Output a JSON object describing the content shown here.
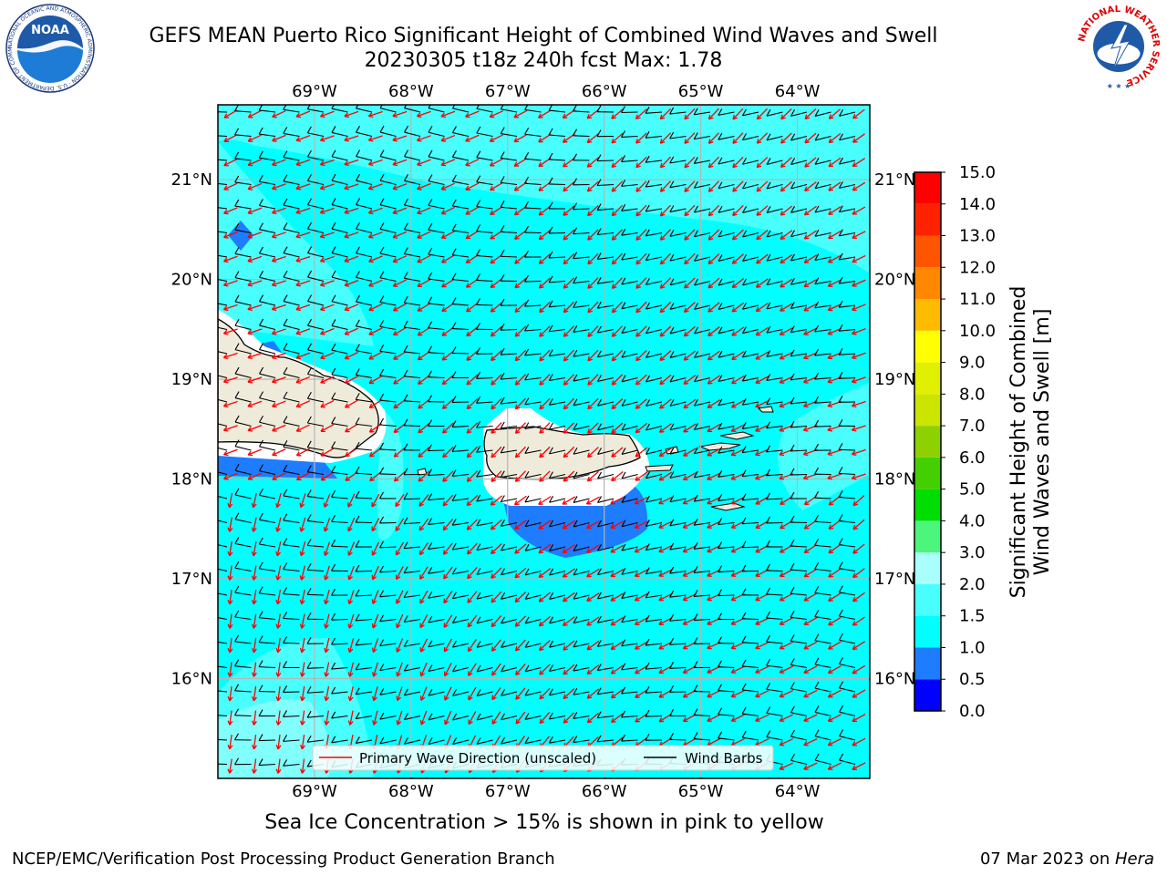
{
  "title": {
    "line1": "GEFS MEAN Puerto Rico Significant Height of Combined Wind Waves and Swell",
    "line2": "20230305 t18z 240h fcst   Max: 1.78"
  },
  "map": {
    "lon_labels": [
      "69°W",
      "68°W",
      "67°W",
      "66°W",
      "65°W",
      "64°W"
    ],
    "lat_labels": [
      "21°N",
      "20°N",
      "19°N",
      "18°N",
      "17°N",
      "16°N"
    ],
    "lon_range": [
      -70.0,
      -63.25
    ],
    "lat_range": [
      15.0,
      21.75
    ]
  },
  "legend": {
    "wave_label": "Primary Wave Direction (unscaled)",
    "barb_label": "Wind Barbs",
    "wave_color": "#ff0000",
    "barb_color": "#000000"
  },
  "colorbar": {
    "title_line1": "Significant Height of Combined",
    "title_line2": "Wind Waves and Swell [m]",
    "ticks": [
      "0.0",
      "0.5",
      "1.0",
      "1.5",
      "2.0",
      "3.0",
      "4.0",
      "5.0",
      "6.0",
      "7.0",
      "8.0",
      "9.0",
      "10.0",
      "11.0",
      "12.0",
      "13.0",
      "14.0",
      "15.0"
    ],
    "colors": [
      "#0000ff",
      "#1e7cff",
      "#00ffff",
      "#48fffe",
      "#a8fffc",
      "#4cf67c",
      "#00dd00",
      "#44d000",
      "#8ed100",
      "#cce500",
      "#e0f000",
      "#ffff00",
      "#ffbb00",
      "#ff8800",
      "#ff5500",
      "#ff2200",
      "#ff0000"
    ]
  },
  "note": "Sea Ice Concentration > 15% is shown in pink to yellow",
  "footer": {
    "left": "NCEP/EMC/Verification Post Processing Product Generation Branch",
    "right_date": "07 Mar 2023 on ",
    "right_host": "Hera"
  },
  "logos": {
    "noaa": "NOAA",
    "noaa_ring": "NATIONAL OCEANIC AND ATMOSPHERIC ADMINISTRATION · U.S. DEPARTMENT OF COMMERCE ·",
    "nws_ring": "NATIONAL WEATHER SERVICE"
  }
}
